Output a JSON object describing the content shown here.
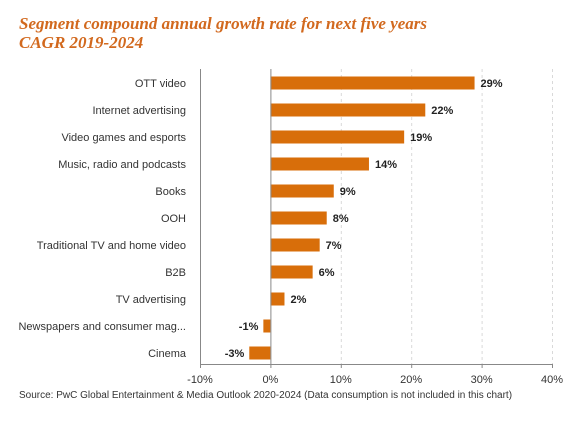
{
  "title": "Segment compound annual growth rate for next five years",
  "subtitle": "CAGR 2019-2024",
  "source": "Source: PwC Global Entertainment & Media Outlook 2020-2024 (Data consumption is not included in this chart)",
  "colors": {
    "bar": "#d86e0a",
    "title": "#d2691e",
    "grid": "#d9d9d9",
    "axis": "#888888"
  },
  "chart_data": {
    "type": "bar",
    "orientation": "horizontal",
    "categories": [
      "OTT video",
      "Internet advertising",
      "Video games and esports",
      "Music, radio and podcasts",
      "Books",
      "OOH",
      "Traditional TV and home video",
      "B2B",
      "TV advertising",
      "Newspapers and consumer mag...",
      "Cinema"
    ],
    "values": [
      29,
      22,
      19,
      14,
      9,
      8,
      7,
      6,
      2,
      -1,
      -3
    ],
    "data_labels": [
      "29%",
      "22%",
      "19%",
      "14%",
      "9%",
      "8%",
      "7%",
      "6%",
      "2%",
      "-1%",
      "-3%"
    ],
    "title": "Segment compound annual growth rate for next five years",
    "subtitle": "CAGR 2019-2024",
    "xlabel": "",
    "ylabel": "",
    "xlim": [
      -10,
      40
    ],
    "xticks": [
      -10,
      0,
      10,
      20,
      30,
      40
    ],
    "xtick_labels": [
      "-10%",
      "0%",
      "10%",
      "20%",
      "30%",
      "40%"
    ],
    "grid": "vertical dashed",
    "legend": "none"
  }
}
